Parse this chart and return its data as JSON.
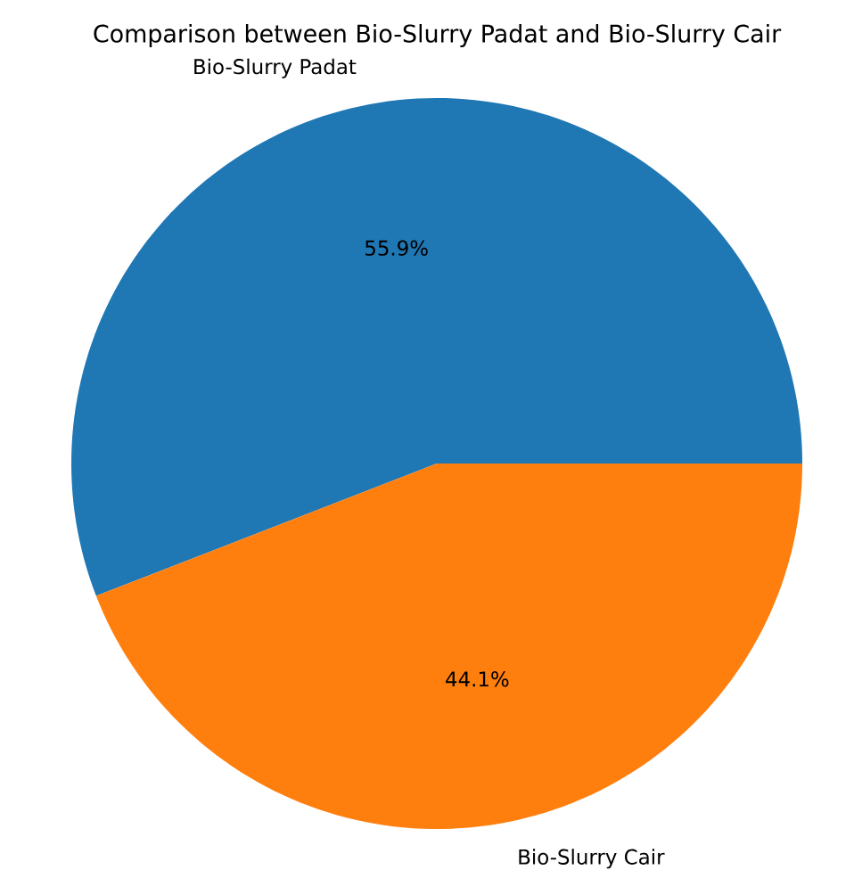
{
  "chart_data": {
    "type": "pie",
    "title": "Comparison between Bio-Slurry Padat and Bio-Slurry Cair",
    "categories": [
      "Bio-Slurry Padat",
      "Bio-Slurry Cair"
    ],
    "values": [
      55.9,
      44.1
    ],
    "colors": [
      "#1f77b4",
      "#ff7f0e"
    ],
    "value_labels": [
      "55.9%",
      "44.1%"
    ]
  }
}
